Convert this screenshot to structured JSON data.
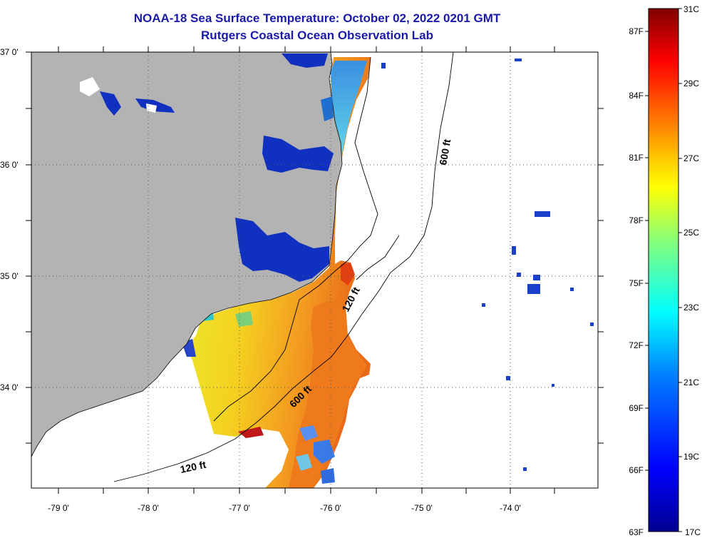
{
  "header": {
    "title": "NOAA-18 Sea Surface Temperature:  October 02, 2022 0201 GMT",
    "subtitle": "Rutgers Coastal Ocean Observation Lab"
  },
  "axes": {
    "lat_labels": [
      "37 0'",
      "36 0'",
      "35 0'",
      "34 0'"
    ],
    "lon_labels": [
      "-79 0'",
      "-78 0'",
      "-77 0'",
      "-76 0'",
      "-75 0'",
      "-74 0'"
    ]
  },
  "contours": {
    "label_600_north": "600 ft",
    "label_120_mid": "120 ft",
    "label_600_south": "600 ft",
    "label_120_south": "120 ft"
  },
  "colorbar": {
    "fahrenheit": [
      "87F",
      "84F",
      "81F",
      "78F",
      "75F",
      "72F",
      "69F",
      "66F",
      "63F"
    ],
    "celsius": [
      "31C",
      "29C",
      "27C",
      "25C",
      "23C",
      "21C",
      "19C",
      "17C"
    ],
    "colors": [
      "#800000",
      "#ff0000",
      "#ff8000",
      "#ffff00",
      "#80ff80",
      "#00ffff",
      "#0080ff",
      "#0000ff",
      "#00008f"
    ]
  },
  "colors": {
    "land": "#b3b3b3",
    "ocean": "#ffffff",
    "title": "#1a1aa8"
  }
}
